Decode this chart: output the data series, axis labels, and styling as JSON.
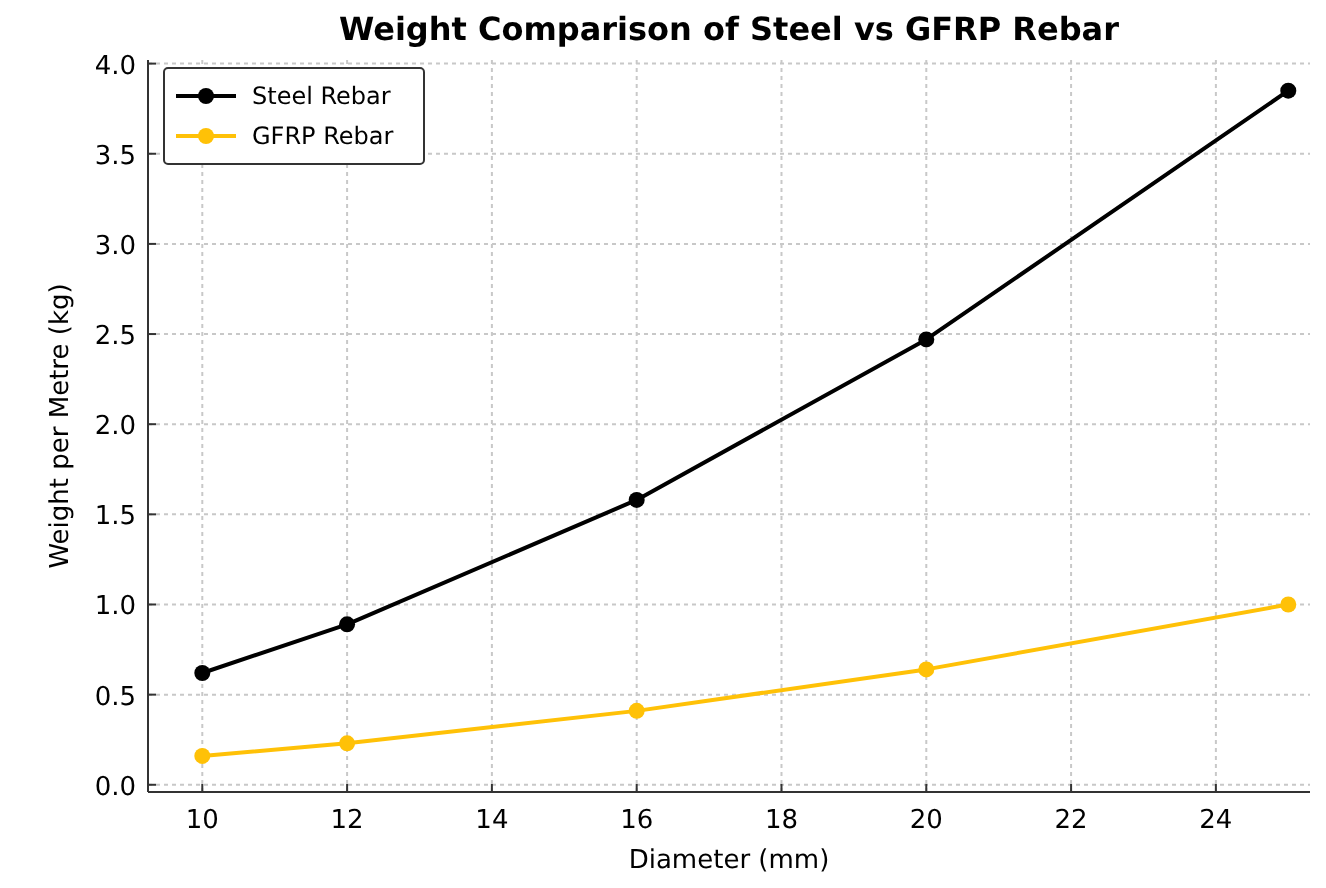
{
  "chart_data": {
    "type": "line",
    "title": "Weight Comparison of Steel vs GFRP Rebar",
    "xlabel": "Diameter (mm)",
    "ylabel": "Weight per Metre (kg)",
    "x": [
      10,
      12,
      16,
      20,
      25
    ],
    "series": [
      {
        "name": "Steel Rebar",
        "color": "#000000",
        "values": [
          0.62,
          0.89,
          1.58,
          2.47,
          3.85
        ]
      },
      {
        "name": "GFRP Rebar",
        "color": "#ffc107",
        "values": [
          0.16,
          0.23,
          0.41,
          0.64,
          1.0
        ]
      }
    ],
    "xlim": [
      9.25,
      25.3
    ],
    "xticks": [
      10,
      12,
      14,
      16,
      18,
      20,
      22,
      24
    ],
    "ylim": [
      -0.04,
      4.02
    ],
    "yticks": [
      {
        "value": 0,
        "label": "0.0"
      },
      0.5,
      {
        "value": 1,
        "label": "1.0"
      },
      1.5,
      {
        "value": 2,
        "label": "2.0"
      },
      2.5,
      {
        "value": 3,
        "label": "3.0"
      },
      3.5,
      {
        "value": 4,
        "label": "4.0"
      }
    ],
    "grid": true,
    "legend": "top left",
    "marker": "circle",
    "line_style": "solid"
  }
}
